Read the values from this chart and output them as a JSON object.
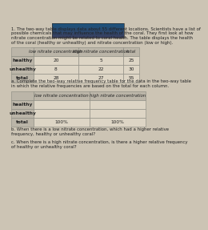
{
  "title_text_1": "1. The two-way table displays data about 55 different locations. Scientists have a list of",
  "title_text_2": "possible chemicals that may influence the health of the coral. They first look at how",
  "title_text_3": "nitrate concentration might be related to coral health. The table displays the health",
  "title_text_4": "of the coral (healthy or unhealthy) and nitrate concentration (low or high).",
  "table1_headers": [
    "",
    "low nitrate concentration",
    "high nitrate concentration",
    "total"
  ],
  "table1_rows": [
    [
      "healthy",
      "20",
      "5",
      "25"
    ],
    [
      "unhealthy",
      "8",
      "22",
      "30"
    ],
    [
      "total",
      "28",
      "27",
      "55"
    ]
  ],
  "part_a_text_1": "a. Complete the two-way relative frequency table for the data in the two-way table",
  "part_a_text_2": "in which the relative frequencies are based on the total for each column.",
  "table2_headers": [
    "",
    "low nitrate concentration",
    "high nitrate concentration"
  ],
  "table2_rows": [
    [
      "healthy",
      "",
      ""
    ],
    [
      "unhealthy",
      "",
      ""
    ],
    [
      "total",
      "100%",
      "100%"
    ]
  ],
  "part_b_text_1": "b. When there is a low nitrate concentration, which had a higher relative",
  "part_b_text_2": "frequency, healthy or unhealthy coral?",
  "part_c_text_1": "c. When there is a high nitrate concentration, is there a higher relative frequency",
  "part_c_text_2": "of healthy or unhealthy coral?",
  "bg_color": "#ccc4b4",
  "table_bg": "#ddd5c5",
  "header_bg": "#bbb5a8",
  "border_color": "#888880",
  "text_color": "#222222",
  "img_top": "#3a6080",
  "img_bottom": "#6a3020"
}
